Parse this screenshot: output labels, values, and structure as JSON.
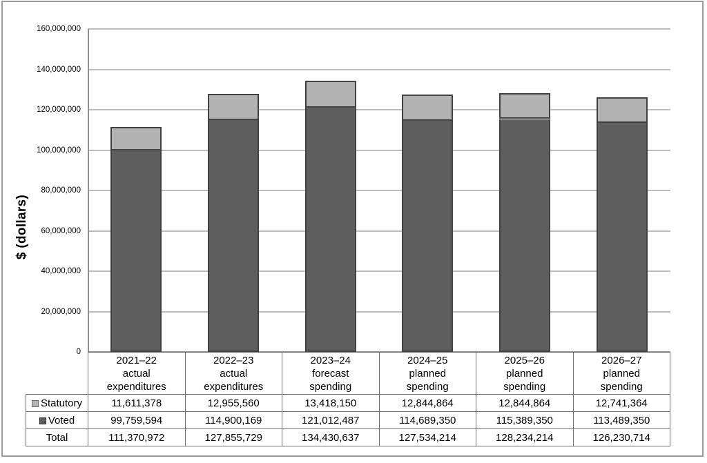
{
  "frame": {
    "background": "#ffffff",
    "border_color": "#9c9c9c"
  },
  "chart_data": {
    "type": "bar",
    "stacked": true,
    "title": "",
    "xlabel": "",
    "ylabel": "$ (dollars)",
    "ylim": [
      0,
      160000000
    ],
    "ytick_step": 20000000,
    "grid": true,
    "legend_position": "table-row-labels",
    "axis_color": "#8e8e8e",
    "gridline_color": "#bcbcbc",
    "categories": [
      "2021–22 actual expenditures",
      "2022–23 actual expenditures",
      "2023–24 forecast spending",
      "2024–25 planned spending",
      "2025–26 planned spending",
      "2026–27 planned spending"
    ],
    "series": [
      {
        "name": "Statutory",
        "color": "#b3b3b3",
        "border_color": "#414141",
        "values": [
          11611378,
          12955560,
          13418150,
          12844864,
          12844864,
          12741364
        ]
      },
      {
        "name": "Voted",
        "color": "#5e5e5e",
        "border_color": "#414141",
        "values": [
          99759594,
          114900169,
          121012487,
          114689350,
          115389350,
          113489350
        ]
      }
    ],
    "totals": [
      111370972,
      127855729,
      134430637,
      127534214,
      128234214,
      126230714
    ]
  },
  "table": {
    "column_headers": [
      "2021–22\nactual\nexpenditures",
      "2022–23\nactual\nexpenditures",
      "2023–24\nforecast\nspending",
      "2024–25\nplanned\nspending",
      "2025–26\nplanned\nspending",
      "2026–27\nplanned\nspending"
    ],
    "rows": [
      {
        "label": "Statutory",
        "swatch_color": "#b3b3b3",
        "swatch_border": "#6a6a6a",
        "values": [
          "11,611,378",
          "12,955,560",
          "13,418,150",
          "12,844,864",
          "12,844,864",
          "12,741,364"
        ]
      },
      {
        "label": "Voted",
        "swatch_color": "#5e5e5e",
        "swatch_border": "#2d2d2d",
        "values": [
          "99,759,594",
          "114,900,169",
          "121,012,487",
          "114,689,350",
          "115,389,350",
          "113,489,350"
        ]
      },
      {
        "label": "Total",
        "values": [
          "111,370,972",
          "127,855,729",
          "134,430,637",
          "127,534,214",
          "128,234,214",
          "126,230,714"
        ]
      }
    ]
  }
}
